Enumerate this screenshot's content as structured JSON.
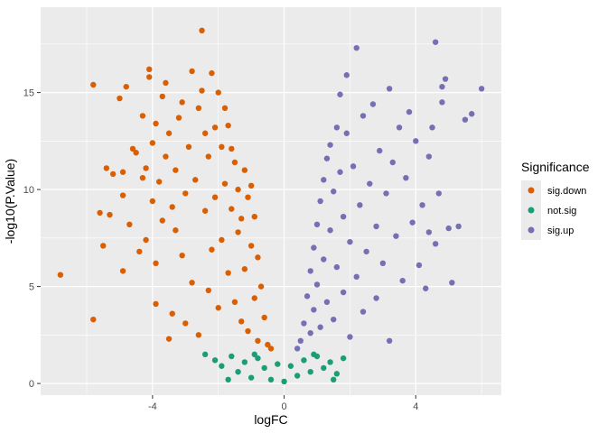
{
  "chart_data": {
    "type": "scatter",
    "title": "",
    "xlabel": "logFC",
    "ylabel": "-log10(P.Value)",
    "xlim": [
      -7.4,
      6.6
    ],
    "ylim": [
      -0.6,
      19.4
    ],
    "x_ticks": [
      -4,
      0,
      4
    ],
    "y_ticks": [
      0,
      5,
      10,
      15
    ],
    "x_tick_labels": [
      "-4",
      "0",
      "4"
    ],
    "y_tick_labels": [
      "0",
      "5",
      "10",
      "15"
    ],
    "grid": true,
    "panel_background": "#EBEBEB",
    "legend": {
      "title": "Significance",
      "placement": "right",
      "entries": [
        {
          "label": "sig.down",
          "color": "#D95F02"
        },
        {
          "label": "not.sig",
          "color": "#1B9E77"
        },
        {
          "label": "sig.up",
          "color": "#7570B3"
        }
      ]
    },
    "series": [
      {
        "name": "sig.down",
        "color": "#D95F02",
        "points": [
          [
            -6.8,
            5.6
          ],
          [
            -5.8,
            3.3
          ],
          [
            -5.8,
            15.4
          ],
          [
            -5.6,
            8.8
          ],
          [
            -5.5,
            7.1
          ],
          [
            -5.4,
            11.1
          ],
          [
            -5.3,
            8.7
          ],
          [
            -5.2,
            10.8
          ],
          [
            -5.0,
            14.7
          ],
          [
            -4.9,
            5.8
          ],
          [
            -4.9,
            10.9
          ],
          [
            -4.9,
            9.7
          ],
          [
            -4.8,
            15.3
          ],
          [
            -4.7,
            8.2
          ],
          [
            -4.6,
            12.1
          ],
          [
            -4.5,
            11.9
          ],
          [
            -4.4,
            6.8
          ],
          [
            -4.3,
            13.8
          ],
          [
            -4.3,
            10.6
          ],
          [
            -4.2,
            11.1
          ],
          [
            -4.2,
            7.4
          ],
          [
            -4.1,
            15.8
          ],
          [
            -4.1,
            16.2
          ],
          [
            -4.0,
            9.4
          ],
          [
            -4.0,
            12.4
          ],
          [
            -3.9,
            4.1
          ],
          [
            -3.9,
            6.2
          ],
          [
            -3.9,
            13.4
          ],
          [
            -3.8,
            10.4
          ],
          [
            -3.7,
            14.8
          ],
          [
            -3.7,
            8.4
          ],
          [
            -3.6,
            15.5
          ],
          [
            -3.6,
            11.7
          ],
          [
            -3.5,
            2.3
          ],
          [
            -3.5,
            12.9
          ],
          [
            -3.4,
            9.1
          ],
          [
            -3.4,
            3.6
          ],
          [
            -3.3,
            7.9
          ],
          [
            -3.3,
            11.0
          ],
          [
            -3.2,
            13.7
          ],
          [
            -3.1,
            6.6
          ],
          [
            -3.1,
            14.5
          ],
          [
            -3.0,
            3.1
          ],
          [
            -3.0,
            9.8
          ],
          [
            -2.9,
            12.2
          ],
          [
            -2.8,
            16.1
          ],
          [
            -2.8,
            5.2
          ],
          [
            -2.7,
            10.5
          ],
          [
            -2.6,
            14.2
          ],
          [
            -2.6,
            2.5
          ],
          [
            -2.5,
            15.1
          ],
          [
            -2.5,
            18.2
          ],
          [
            -2.4,
            8.9
          ],
          [
            -2.4,
            12.9
          ],
          [
            -2.3,
            4.8
          ],
          [
            -2.3,
            11.7
          ],
          [
            -2.2,
            16.0
          ],
          [
            -2.2,
            6.9
          ],
          [
            -2.1,
            13.2
          ],
          [
            -2.1,
            9.6
          ],
          [
            -2.0,
            15.0
          ],
          [
            -2.0,
            3.9
          ],
          [
            -1.9,
            12.2
          ],
          [
            -1.9,
            7.4
          ],
          [
            -1.8,
            14.2
          ],
          [
            -1.8,
            10.3
          ],
          [
            -1.7,
            5.7
          ],
          [
            -1.7,
            13.3
          ],
          [
            -1.6,
            9.0
          ],
          [
            -1.6,
            12.1
          ],
          [
            -1.5,
            4.2
          ],
          [
            -1.5,
            11.4
          ],
          [
            -1.4,
            7.8
          ],
          [
            -1.4,
            10.0
          ],
          [
            -1.3,
            3.2
          ],
          [
            -1.3,
            8.5
          ],
          [
            -1.2,
            11.0
          ],
          [
            -1.2,
            5.9
          ],
          [
            -1.1,
            9.6
          ],
          [
            -1.1,
            2.7
          ],
          [
            -1.0,
            7.1
          ],
          [
            -1.0,
            10.2
          ],
          [
            -0.9,
            4.4
          ],
          [
            -0.9,
            8.6
          ],
          [
            -0.8,
            2.2
          ],
          [
            -0.8,
            6.5
          ],
          [
            -0.7,
            5.0
          ],
          [
            -0.6,
            3.4
          ],
          [
            -0.5,
            2.0
          ],
          [
            -0.4,
            1.8
          ]
        ]
      },
      {
        "name": "not.sig",
        "color": "#1B9E77",
        "points": [
          [
            -2.4,
            1.5
          ],
          [
            -2.1,
            1.2
          ],
          [
            -1.9,
            0.9
          ],
          [
            -1.6,
            1.4
          ],
          [
            -1.4,
            0.6
          ],
          [
            -1.2,
            1.1
          ],
          [
            -1.0,
            0.3
          ],
          [
            -0.8,
            1.3
          ],
          [
            -0.6,
            0.8
          ],
          [
            -0.4,
            0.2
          ],
          [
            -0.2,
            1.0
          ],
          [
            0.0,
            0.1
          ],
          [
            0.2,
            0.9
          ],
          [
            0.4,
            0.4
          ],
          [
            0.6,
            1.2
          ],
          [
            0.8,
            0.6
          ],
          [
            1.0,
            1.4
          ],
          [
            1.2,
            0.8
          ],
          [
            1.4,
            1.1
          ],
          [
            1.6,
            0.5
          ],
          [
            1.8,
            1.3
          ],
          [
            -1.7,
            0.2
          ],
          [
            1.5,
            0.2
          ],
          [
            -0.9,
            1.5
          ],
          [
            0.9,
            1.5
          ]
        ]
      },
      {
        "name": "sig.up",
        "color": "#7570B3",
        "points": [
          [
            0.4,
            1.8
          ],
          [
            0.5,
            2.2
          ],
          [
            0.6,
            3.1
          ],
          [
            0.7,
            4.5
          ],
          [
            0.8,
            5.8
          ],
          [
            0.8,
            2.6
          ],
          [
            0.9,
            7.0
          ],
          [
            0.9,
            3.8
          ],
          [
            1.0,
            8.2
          ],
          [
            1.0,
            5.1
          ],
          [
            1.1,
            9.4
          ],
          [
            1.1,
            2.9
          ],
          [
            1.2,
            10.5
          ],
          [
            1.2,
            6.4
          ],
          [
            1.3,
            11.6
          ],
          [
            1.3,
            4.2
          ],
          [
            1.4,
            12.3
          ],
          [
            1.4,
            7.9
          ],
          [
            1.5,
            3.3
          ],
          [
            1.5,
            9.9
          ],
          [
            1.6,
            13.2
          ],
          [
            1.6,
            6.0
          ],
          [
            1.7,
            14.9
          ],
          [
            1.7,
            10.9
          ],
          [
            1.8,
            4.7
          ],
          [
            1.8,
            8.6
          ],
          [
            1.9,
            12.9
          ],
          [
            1.9,
            15.9
          ],
          [
            2.0,
            2.4
          ],
          [
            2.0,
            7.3
          ],
          [
            2.1,
            11.2
          ],
          [
            2.2,
            17.3
          ],
          [
            2.2,
            5.5
          ],
          [
            2.3,
            9.2
          ],
          [
            2.4,
            13.8
          ],
          [
            2.4,
            3.7
          ],
          [
            2.5,
            6.8
          ],
          [
            2.6,
            10.3
          ],
          [
            2.7,
            14.4
          ],
          [
            2.8,
            8.1
          ],
          [
            2.8,
            4.4
          ],
          [
            2.9,
            12.0
          ],
          [
            3.0,
            6.2
          ],
          [
            3.1,
            9.8
          ],
          [
            3.2,
            15.2
          ],
          [
            3.2,
            2.2
          ],
          [
            3.3,
            11.4
          ],
          [
            3.4,
            7.6
          ],
          [
            3.5,
            13.2
          ],
          [
            3.6,
            5.3
          ],
          [
            3.7,
            10.6
          ],
          [
            3.8,
            14.0
          ],
          [
            3.9,
            8.3
          ],
          [
            4.0,
            12.5
          ],
          [
            4.1,
            6.1
          ],
          [
            4.2,
            9.2
          ],
          [
            4.3,
            4.9
          ],
          [
            4.4,
            11.7
          ],
          [
            4.5,
            13.2
          ],
          [
            4.6,
            17.6
          ],
          [
            4.6,
            7.2
          ],
          [
            4.7,
            9.8
          ],
          [
            4.8,
            15.3
          ],
          [
            4.8,
            14.5
          ],
          [
            4.9,
            15.7
          ],
          [
            5.0,
            8.0
          ],
          [
            5.1,
            5.2
          ],
          [
            5.3,
            8.1
          ],
          [
            5.5,
            13.6
          ],
          [
            5.7,
            13.9
          ],
          [
            6.0,
            15.2
          ],
          [
            4.4,
            7.8
          ]
        ]
      }
    ]
  }
}
